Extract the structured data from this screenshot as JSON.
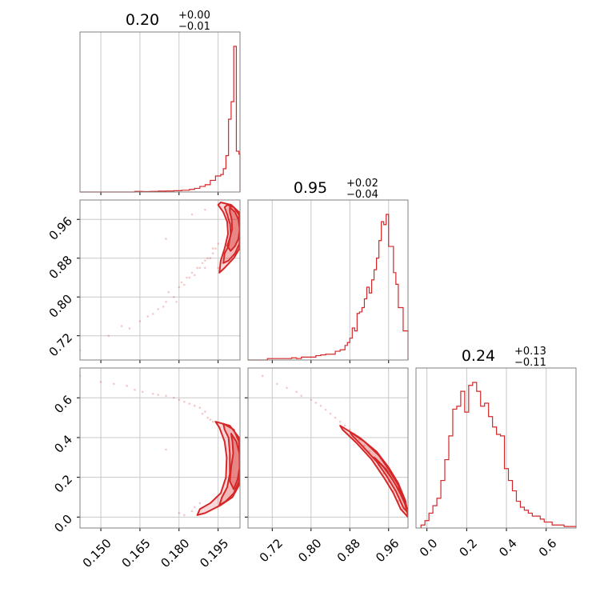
{
  "chart_data": {
    "type": "corner",
    "color": "#d62728",
    "grid": true,
    "params": [
      {
        "range": [
          0.142,
          0.2034
        ],
        "ticks": [
          0.15,
          0.165,
          0.18,
          0.195
        ],
        "tick_labels": [
          "0.150",
          "0.165",
          "0.180",
          "0.195"
        ],
        "title": {
          "median": "0.20",
          "plus": "+0.00",
          "minus": "−0.01"
        },
        "hist": {
          "edges": [
            0.142,
            0.145,
            0.148,
            0.151,
            0.154,
            0.157,
            0.16,
            0.163,
            0.166,
            0.169,
            0.172,
            0.175,
            0.178,
            0.181,
            0.184,
            0.186,
            0.188,
            0.19,
            0.192,
            0.194,
            0.196,
            0.197,
            0.198,
            0.199,
            0.2,
            0.201,
            0.202,
            0.203,
            0.2034
          ],
          "counts": [
            0,
            0,
            0,
            0,
            0,
            0,
            0,
            0.004,
            0.003,
            0.004,
            0.006,
            0.007,
            0.009,
            0.012,
            0.018,
            0.025,
            0.038,
            0.05,
            0.08,
            0.11,
            0.12,
            0.16,
            0.25,
            0.5,
            0.62,
            1.0,
            0.28,
            0.26
          ]
        }
      },
      {
        "range": [
          0.67,
          1.0
        ],
        "ticks": [
          0.72,
          0.8,
          0.88,
          0.96
        ],
        "tick_labels": [
          "0.72",
          "0.80",
          "0.88",
          "0.96"
        ],
        "title": {
          "median": "0.95",
          "plus": "+0.02",
          "minus": "−0.04"
        },
        "hist": {
          "edges": [
            0.67,
            0.68,
            0.69,
            0.7,
            0.71,
            0.72,
            0.73,
            0.74,
            0.75,
            0.76,
            0.77,
            0.78,
            0.79,
            0.8,
            0.81,
            0.82,
            0.83,
            0.84,
            0.85,
            0.86,
            0.87,
            0.875,
            0.88,
            0.885,
            0.89,
            0.895,
            0.9,
            0.905,
            0.91,
            0.915,
            0.92,
            0.925,
            0.93,
            0.935,
            0.94,
            0.945,
            0.95,
            0.955,
            0.96,
            0.965,
            0.97,
            0.975,
            0.98,
            0.985,
            0.99,
            0.995,
            1.0
          ],
          "counts": [
            0,
            0,
            0,
            0,
            0.01,
            0.01,
            0.01,
            0.01,
            0.01,
            0.015,
            0.01,
            0.02,
            0.02,
            0.02,
            0.03,
            0.035,
            0.04,
            0.04,
            0.06,
            0.07,
            0.1,
            0.12,
            0.15,
            0.22,
            0.2,
            0.32,
            0.33,
            0.36,
            0.42,
            0.5,
            0.46,
            0.55,
            0.62,
            0.7,
            0.82,
            0.95,
            0.93,
            1.0,
            0.78,
            0.78,
            0.6,
            0.52,
            0.36,
            0.36,
            0.2,
            0.2
          ]
        }
      },
      {
        "range": [
          -0.055,
          0.75
        ],
        "ticks": [
          0.0,
          0.2,
          0.4,
          0.6
        ],
        "tick_labels": [
          "0.0",
          "0.2",
          "0.4",
          "0.6"
        ],
        "title": {
          "median": "0.24",
          "plus": "+0.13",
          "minus": "−0.11"
        },
        "hist": {
          "edges": [
            -0.03,
            -0.01,
            0.01,
            0.03,
            0.05,
            0.07,
            0.09,
            0.11,
            0.13,
            0.15,
            0.17,
            0.19,
            0.21,
            0.23,
            0.25,
            0.27,
            0.29,
            0.31,
            0.33,
            0.35,
            0.37,
            0.39,
            0.41,
            0.43,
            0.45,
            0.47,
            0.49,
            0.51,
            0.53,
            0.55,
            0.57,
            0.59,
            0.61,
            0.63,
            0.65,
            0.67,
            0.69,
            0.71,
            0.73,
            0.75
          ],
          "counts": [
            0.02,
            0.05,
            0.1,
            0.15,
            0.2,
            0.32,
            0.46,
            0.62,
            0.8,
            0.82,
            0.92,
            0.78,
            0.96,
            0.98,
            0.92,
            0.82,
            0.84,
            0.75,
            0.68,
            0.63,
            0.62,
            0.4,
            0.32,
            0.25,
            0.18,
            0.14,
            0.12,
            0.1,
            0.08,
            0.08,
            0.06,
            0.04,
            0.04,
            0.02,
            0.02,
            0.02,
            0.01,
            0.01,
            0.01
          ]
        }
      }
    ],
    "pairs": [
      {
        "x_param": 0,
        "y_param": 1,
        "scatter": [
          [
            0.142,
            0.69
          ],
          [
            0.153,
            0.72
          ],
          [
            0.158,
            0.74
          ],
          [
            0.161,
            0.735
          ],
          [
            0.165,
            0.75
          ],
          [
            0.168,
            0.76
          ],
          [
            0.17,
            0.765
          ],
          [
            0.172,
            0.775
          ],
          [
            0.174,
            0.78
          ],
          [
            0.175,
            0.79
          ],
          [
            0.176,
            0.81
          ],
          [
            0.178,
            0.8
          ],
          [
            0.179,
            0.79
          ],
          [
            0.18,
            0.82
          ],
          [
            0.181,
            0.83
          ],
          [
            0.182,
            0.825
          ],
          [
            0.183,
            0.84
          ],
          [
            0.184,
            0.84
          ],
          [
            0.185,
            0.85
          ],
          [
            0.186,
            0.845
          ],
          [
            0.187,
            0.86
          ],
          [
            0.188,
            0.86
          ],
          [
            0.189,
            0.87
          ],
          [
            0.19,
            0.86
          ],
          [
            0.19,
            0.875
          ],
          [
            0.191,
            0.88
          ],
          [
            0.192,
            0.88
          ],
          [
            0.193,
            0.89
          ],
          [
            0.193,
            0.9
          ],
          [
            0.194,
            0.9
          ],
          [
            0.195,
            0.91
          ],
          [
            0.195,
            0.86
          ],
          [
            0.196,
            0.87
          ],
          [
            0.175,
            0.92
          ],
          [
            0.185,
            0.97
          ],
          [
            0.19,
            0.98
          ]
        ],
        "contours": [
          [
            [
              0.1995,
              0.985
            ],
            [
              0.2015,
              0.975
            ],
            [
              0.2028,
              0.96
            ],
            [
              0.2033,
              0.94
            ],
            [
              0.2028,
              0.92
            ],
            [
              0.2015,
              0.905
            ],
            [
              0.1998,
              0.895
            ],
            [
              0.1985,
              0.905
            ],
            [
              0.1994,
              0.92
            ],
            [
              0.2004,
              0.94
            ],
            [
              0.2002,
              0.96
            ],
            [
              0.1995,
              0.975
            ]
          ],
          [
            [
              0.1985,
              0.99
            ],
            [
              0.201,
              0.985
            ],
            [
              0.203,
              0.97
            ],
            [
              0.2034,
              0.94
            ],
            [
              0.2032,
              0.91
            ],
            [
              0.2015,
              0.89
            ],
            [
              0.199,
              0.875
            ],
            [
              0.197,
              0.87
            ],
            [
              0.1975,
              0.89
            ],
            [
              0.199,
              0.905
            ],
            [
              0.1998,
              0.93
            ],
            [
              0.1996,
              0.95
            ],
            [
              0.1985,
              0.97
            ],
            [
              0.1975,
              0.985
            ]
          ],
          [
            [
              0.196,
              0.995
            ],
            [
              0.2,
              0.99
            ],
            [
              0.203,
              0.975
            ],
            [
              0.2034,
              0.94
            ],
            [
              0.2032,
              0.9
            ],
            [
              0.201,
              0.88
            ],
            [
              0.1975,
              0.86
            ],
            [
              0.1955,
              0.85
            ],
            [
              0.196,
              0.875
            ],
            [
              0.1975,
              0.9
            ],
            [
              0.1988,
              0.93
            ],
            [
              0.1985,
              0.955
            ],
            [
              0.197,
              0.975
            ],
            [
              0.195,
              0.99
            ]
          ]
        ]
      },
      {
        "x_param": 0,
        "y_param": 2,
        "scatter": [
          [
            0.142,
            0.71
          ],
          [
            0.15,
            0.68
          ],
          [
            0.155,
            0.67
          ],
          [
            0.16,
            0.66
          ],
          [
            0.163,
            0.64
          ],
          [
            0.166,
            0.63
          ],
          [
            0.17,
            0.62
          ],
          [
            0.172,
            0.615
          ],
          [
            0.175,
            0.61
          ],
          [
            0.178,
            0.6
          ],
          [
            0.18,
            0.59
          ],
          [
            0.182,
            0.58
          ],
          [
            0.184,
            0.57
          ],
          [
            0.186,
            0.56
          ],
          [
            0.188,
            0.55
          ],
          [
            0.189,
            0.52
          ],
          [
            0.19,
            0.53
          ],
          [
            0.191,
            0.5
          ],
          [
            0.192,
            0.49
          ],
          [
            0.193,
            0.48
          ],
          [
            0.175,
            0.34
          ],
          [
            0.18,
            0.02
          ],
          [
            0.182,
            0.01
          ],
          [
            0.185,
            0.03
          ],
          [
            0.186,
            0.05
          ],
          [
            0.188,
            0.07
          ]
        ],
        "contours": [
          [
            [
              0.2,
              0.42
            ],
            [
              0.202,
              0.38
            ],
            [
              0.2032,
              0.32
            ],
            [
              0.2033,
              0.25
            ],
            [
              0.2025,
              0.19
            ],
            [
              0.201,
              0.14
            ],
            [
              0.1995,
              0.18
            ],
            [
              0.2,
              0.25
            ],
            [
              0.2008,
              0.32
            ],
            [
              0.2005,
              0.38
            ]
          ],
          [
            [
              0.197,
              0.47
            ],
            [
              0.201,
              0.44
            ],
            [
              0.203,
              0.38
            ],
            [
              0.2034,
              0.28
            ],
            [
              0.203,
              0.18
            ],
            [
              0.201,
              0.12
            ],
            [
              0.198,
              0.08
            ],
            [
              0.1955,
              0.06
            ],
            [
              0.1965,
              0.1
            ],
            [
              0.1985,
              0.15
            ],
            [
              0.1995,
              0.22
            ],
            [
              0.1995,
              0.32
            ],
            [
              0.199,
              0.4
            ],
            [
              0.1975,
              0.44
            ]
          ],
          [
            [
              0.194,
              0.48
            ],
            [
              0.1995,
              0.46
            ],
            [
              0.203,
              0.4
            ],
            [
              0.2034,
              0.28
            ],
            [
              0.203,
              0.16
            ],
            [
              0.2005,
              0.1
            ],
            [
              0.196,
              0.06
            ],
            [
              0.19,
              0.02
            ],
            [
              0.187,
              0.01
            ],
            [
              0.188,
              0.04
            ],
            [
              0.192,
              0.07
            ],
            [
              0.196,
              0.12
            ],
            [
              0.198,
              0.2
            ],
            [
              0.1983,
              0.3
            ],
            [
              0.1975,
              0.38
            ],
            [
              0.1955,
              0.45
            ]
          ]
        ]
      },
      {
        "x_param": 1,
        "y_param": 2,
        "scatter": [
          [
            0.7,
            0.71
          ],
          [
            0.73,
            0.67
          ],
          [
            0.75,
            0.65
          ],
          [
            0.77,
            0.63
          ],
          [
            0.78,
            0.61
          ],
          [
            0.8,
            0.59
          ],
          [
            0.81,
            0.575
          ],
          [
            0.82,
            0.56
          ],
          [
            0.83,
            0.54
          ],
          [
            0.84,
            0.52
          ],
          [
            0.85,
            0.5
          ],
          [
            0.86,
            0.48
          ],
          [
            0.87,
            0.46
          ],
          [
            0.88,
            0.44
          ],
          [
            0.89,
            0.42
          ],
          [
            0.9,
            0.39
          ],
          [
            0.91,
            0.36
          ],
          [
            0.92,
            0.33
          ],
          [
            0.93,
            0.3
          ],
          [
            0.94,
            0.26
          ],
          [
            0.95,
            0.22
          ],
          [
            0.96,
            0.18
          ],
          [
            0.97,
            0.13
          ],
          [
            0.98,
            0.08
          ],
          [
            0.99,
            0.04
          ]
        ],
        "contours": [
          [
            [
              0.93,
              0.3
            ],
            [
              0.95,
              0.25
            ],
            [
              0.965,
              0.2
            ],
            [
              0.98,
              0.14
            ],
            [
              0.995,
              0.06
            ],
            [
              0.998,
              0.03
            ],
            [
              0.992,
              0.08
            ],
            [
              0.975,
              0.16
            ],
            [
              0.955,
              0.24
            ],
            [
              0.935,
              0.29
            ]
          ],
          [
            [
              0.88,
              0.43
            ],
            [
              0.91,
              0.38
            ],
            [
              0.94,
              0.31
            ],
            [
              0.96,
              0.24
            ],
            [
              0.98,
              0.16
            ],
            [
              0.995,
              0.07
            ],
            [
              1.0,
              0.02
            ],
            [
              0.99,
              0.05
            ],
            [
              0.975,
              0.13
            ],
            [
              0.955,
              0.21
            ],
            [
              0.935,
              0.28
            ],
            [
              0.905,
              0.36
            ],
            [
              0.885,
              0.41
            ]
          ],
          [
            [
              0.86,
              0.46
            ],
            [
              0.9,
              0.4
            ],
            [
              0.935,
              0.33
            ],
            [
              0.96,
              0.25
            ],
            [
              0.98,
              0.17
            ],
            [
              0.995,
              0.08
            ],
            [
              1.0,
              0.0
            ],
            [
              0.985,
              0.04
            ],
            [
              0.97,
              0.12
            ],
            [
              0.95,
              0.2
            ],
            [
              0.925,
              0.29
            ],
            [
              0.895,
              0.37
            ],
            [
              0.865,
              0.44
            ]
          ]
        ]
      }
    ]
  }
}
